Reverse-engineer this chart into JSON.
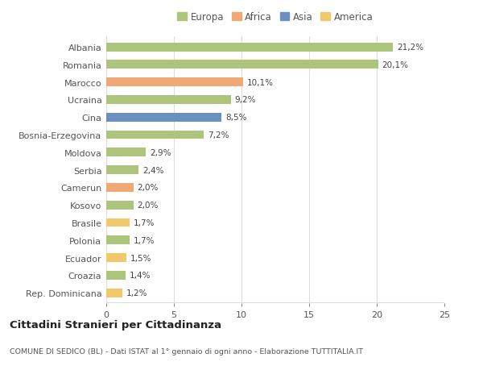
{
  "countries": [
    "Albania",
    "Romania",
    "Marocco",
    "Ucraina",
    "Cina",
    "Bosnia-Erzegovina",
    "Moldova",
    "Serbia",
    "Camerun",
    "Kosovo",
    "Brasile",
    "Polonia",
    "Ecuador",
    "Croazia",
    "Rep. Dominicana"
  ],
  "values": [
    21.2,
    20.1,
    10.1,
    9.2,
    8.5,
    7.2,
    2.9,
    2.4,
    2.0,
    2.0,
    1.7,
    1.7,
    1.5,
    1.4,
    1.2
  ],
  "continents": [
    "Europa",
    "Europa",
    "Africa",
    "Europa",
    "Asia",
    "Europa",
    "Europa",
    "Europa",
    "Africa",
    "Europa",
    "America",
    "Europa",
    "America",
    "Europa",
    "America"
  ],
  "colors": {
    "Europa": "#adc47d",
    "Africa": "#f0a875",
    "Asia": "#6a8fc0",
    "America": "#f0c96a"
  },
  "legend_order": [
    "Europa",
    "Africa",
    "Asia",
    "America"
  ],
  "title": "Cittadini Stranieri per Cittadinanza",
  "subtitle": "COMUNE DI SEDICO (BL) - Dati ISTAT al 1° gennaio di ogni anno - Elaborazione TUTTITALIA.IT",
  "xlim": [
    0,
    25
  ],
  "xticks": [
    0,
    5,
    10,
    15,
    20,
    25
  ],
  "bg_color": "#ffffff",
  "grid_color": "#dddddd",
  "bar_height": 0.5
}
